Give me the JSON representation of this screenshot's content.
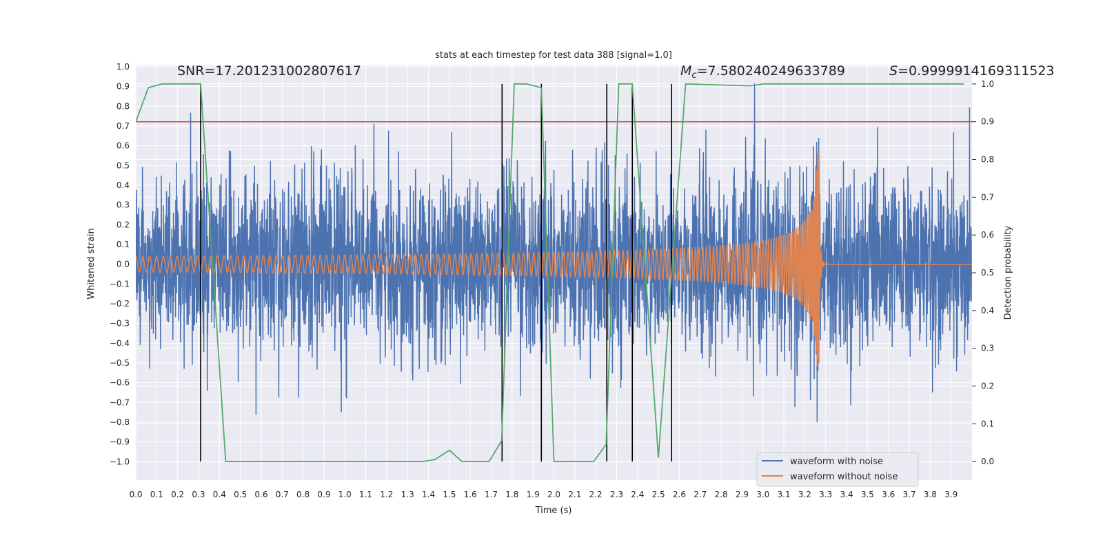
{
  "chart_data": {
    "type": "line",
    "title": "stats at each timestep for test data 388 [signal=1.0]",
    "xlabel": "Time (s)",
    "ylabel": "Whitened strain",
    "ylabel_right": "Detection probability",
    "xlim": [
      0,
      4.0
    ],
    "ylim": [
      -1.093,
      1.007
    ],
    "ylim_right": [
      -0.049,
      1.049
    ],
    "grid": true,
    "x_ticks": [
      "0.0",
      "0.1",
      "0.2",
      "0.3",
      "0.4",
      "0.5",
      "0.6",
      "0.7",
      "0.8",
      "0.9",
      "1.0",
      "1.1",
      "1.2",
      "1.3",
      "1.4",
      "1.5",
      "1.6",
      "1.7",
      "1.8",
      "1.9",
      "2.0",
      "2.1",
      "2.2",
      "2.3",
      "2.4",
      "2.5",
      "2.6",
      "2.7",
      "2.8",
      "2.9",
      "3.0",
      "3.1",
      "3.2",
      "3.3",
      "3.4",
      "3.5",
      "3.6",
      "3.7",
      "3.8",
      "3.9"
    ],
    "y_ticks": [
      "1.0",
      "0.9",
      "0.8",
      "0.7",
      "0.6",
      "0.5",
      "0.4",
      "0.3",
      "0.2",
      "0.1",
      "0.0",
      "−0.1",
      "−0.2",
      "−0.3",
      "−0.4",
      "−0.5",
      "−0.6",
      "−0.7",
      "−0.8",
      "−0.9",
      "−1.0"
    ],
    "y_ticks_right": [
      "1.0",
      "0.9",
      "0.8",
      "0.7",
      "0.6",
      "0.5",
      "0.4",
      "0.3",
      "0.2",
      "0.1",
      "0.0"
    ],
    "annotations": {
      "snr": "SNR=17.201231002807617",
      "mc_symbol": "M",
      "mc_sub": "c",
      "mc_value": "=7.580240249633789",
      "s_symbol": "S",
      "s_value": "=0.9999914169311523"
    },
    "legend": {
      "placement": "lower-right",
      "entries": [
        "waveform with noise",
        "waveform without noise"
      ]
    },
    "colors": {
      "noisy": "#4C72B0",
      "clean": "#DD8452",
      "probability": "#55A868",
      "threshold": "#C44E52",
      "markers": "#000000",
      "background": "#EAEAF2"
    },
    "threshold": 0.9,
    "vertical_markers": [
      0.31,
      1.752,
      1.94,
      2.253,
      2.375,
      2.563
    ],
    "probability_series": {
      "t": [
        0.0,
        0.06,
        0.125,
        0.31,
        0.43,
        1.37,
        1.43,
        1.5,
        1.56,
        1.69,
        1.75,
        1.81,
        1.87,
        1.94,
        2.0,
        2.19,
        2.25,
        2.31,
        2.375,
        2.5,
        2.63,
        2.94,
        3.0,
        3.96
      ],
      "p": [
        0.9,
        0.99,
        1.0,
        1.0,
        0.0,
        0.0,
        0.005,
        0.03,
        0.0,
        0.0,
        0.055,
        1.0,
        1.0,
        0.99,
        0.0,
        0.0,
        0.045,
        1.0,
        1.0,
        0.01,
        1.0,
        0.995,
        1.0,
        1.0
      ]
    },
    "waveform_model": {
      "samples": 4000,
      "merger_time": 3.27,
      "initial_frequency_hz": 30,
      "initial_amplitude": 0.04,
      "peak_amplitude": 0.57,
      "noise_std": 0.21
    }
  }
}
